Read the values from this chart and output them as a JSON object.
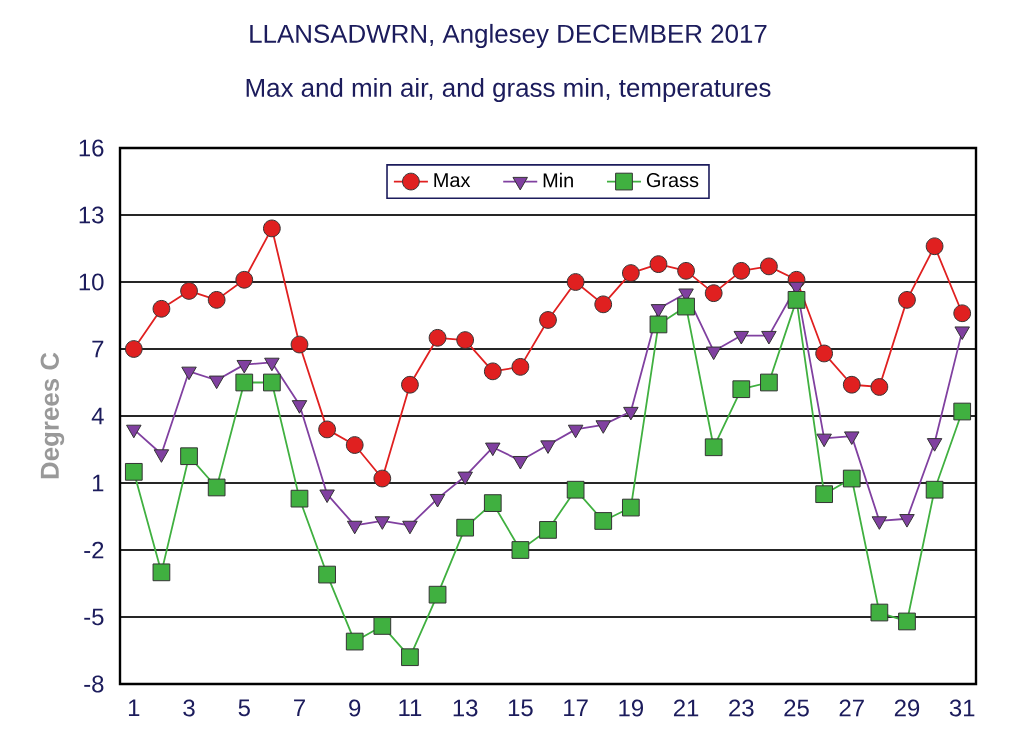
{
  "chart_data": {
    "type": "line",
    "title": "LLANSADWRN, Anglesey DECEMBER 2017",
    "subtitle": "Max and min air, and grass min, temperatures",
    "ylabel": "Degrees C",
    "x": [
      1,
      2,
      3,
      4,
      5,
      6,
      7,
      8,
      9,
      10,
      11,
      12,
      13,
      14,
      15,
      16,
      17,
      18,
      19,
      20,
      21,
      22,
      23,
      24,
      25,
      26,
      27,
      28,
      29,
      30,
      31
    ],
    "xlim": [
      0.5,
      31.5
    ],
    "xticks": [
      1,
      3,
      5,
      7,
      9,
      11,
      13,
      15,
      17,
      19,
      21,
      23,
      25,
      27,
      29,
      31
    ],
    "ylim": [
      -8,
      16
    ],
    "yticks": [
      -8,
      -5,
      -2,
      1,
      4,
      7,
      10,
      13,
      16
    ],
    "grid": "y",
    "legend": "top",
    "series": [
      {
        "name": "Max",
        "color": "#e02020",
        "marker": "circle",
        "values": [
          7.0,
          8.8,
          9.6,
          9.2,
          10.1,
          12.4,
          7.2,
          3.4,
          2.7,
          1.2,
          5.4,
          7.5,
          7.4,
          6.0,
          6.2,
          8.3,
          10.0,
          9.0,
          10.4,
          10.8,
          10.5,
          9.5,
          10.5,
          10.7,
          10.1,
          6.8,
          5.4,
          5.3,
          9.2,
          11.6,
          8.6
        ]
      },
      {
        "name": "Min",
        "color": "#8040a0",
        "marker": "triangle",
        "values": [
          3.4,
          2.3,
          6.0,
          5.6,
          6.3,
          6.4,
          4.5,
          0.5,
          -0.9,
          -0.7,
          -0.9,
          0.3,
          1.3,
          2.6,
          2.0,
          2.7,
          3.4,
          3.6,
          4.2,
          8.8,
          9.5,
          6.9,
          7.6,
          7.6,
          9.8,
          3.0,
          3.1,
          -0.7,
          -0.6,
          2.8,
          7.8
        ]
      },
      {
        "name": "Grass",
        "color": "#40b040",
        "marker": "square",
        "values": [
          1.5,
          -3.0,
          2.2,
          0.8,
          5.5,
          5.5,
          0.3,
          -3.1,
          -6.1,
          -5.4,
          -6.8,
          -4.0,
          -1.0,
          0.1,
          -2.0,
          -1.1,
          0.7,
          -0.7,
          -0.1,
          8.1,
          8.9,
          2.6,
          5.2,
          5.5,
          9.2,
          0.5,
          1.2,
          -4.8,
          -5.2,
          0.7,
          4.2
        ]
      }
    ]
  }
}
